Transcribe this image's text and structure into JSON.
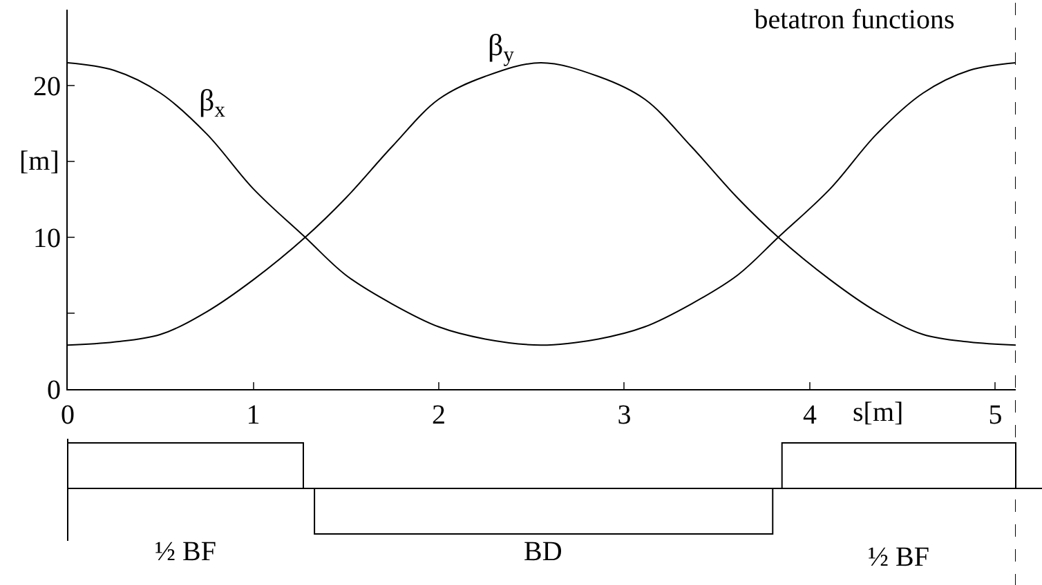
{
  "chart_data": {
    "type": "line",
    "title": "betatron functions",
    "xlabel": "s[m]",
    "ylabel": "[m]",
    "x": [
      0,
      0.25,
      0.5,
      0.75,
      1,
      1.28,
      1.5,
      1.75,
      2,
      2.25,
      2.55,
      2.86,
      3.11,
      3.36,
      3.61,
      3.83,
      4.11,
      4.36,
      4.61,
      4.86,
      5.11
    ],
    "series": [
      {
        "name": "β$_{x}$",
        "color": "#000000",
        "values": [
          21.5,
          21.0,
          19.5,
          16.8,
          13.2,
          10,
          7.5,
          5.6,
          4.1,
          3.3,
          2.9,
          3.3,
          4.1,
          5.6,
          7.5,
          10,
          13.2,
          16.8,
          19.5,
          21.0,
          21.5
        ]
      },
      {
        "name": "β$_{y}$",
        "color": "#000000",
        "values": [
          2.9,
          3.1,
          3.6,
          5.1,
          7.2,
          10,
          12.6,
          16.0,
          19.1,
          20.6,
          21.5,
          20.6,
          19.1,
          16.0,
          12.6,
          10,
          7.2,
          5.1,
          3.6,
          3.1,
          2.9
        ]
      }
    ],
    "xlim": [
      0,
      5.11
    ],
    "ylim": [
      0,
      25
    ],
    "xticks": [
      0,
      1,
      2,
      3,
      4,
      5
    ],
    "yticks": [
      0,
      {
        "value": 5,
        "label": null
      },
      10,
      {
        "value": 15,
        "label": null
      },
      20
    ],
    "grid": false,
    "legend": false,
    "marker": "none",
    "line_style": "solid",
    "ref_lines": [
      {
        "axis": "x",
        "value": 5.11,
        "line_style": "dashed",
        "color": "#000000"
      }
    ],
    "annotations": [
      "½ BF",
      "BD",
      "½ BF"
    ]
  }
}
